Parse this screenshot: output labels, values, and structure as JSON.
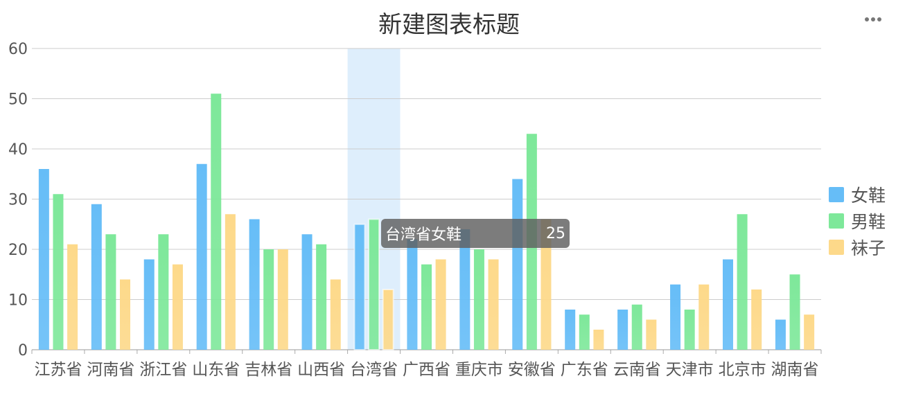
{
  "header": {
    "title": "新建图表标题",
    "more_icon": "more-horizontal-icon"
  },
  "colors": {
    "女鞋": "#66bdf7",
    "男鞋": "#7ee89a",
    "袜子": "#fdd98a",
    "highlight": "#deeefc",
    "grid": "#cccccc"
  },
  "chart_data": {
    "type": "bar",
    "title": "新建图表标题",
    "xlabel": "",
    "ylabel": "",
    "ylim": [
      0,
      60
    ],
    "yticks": [
      0,
      10,
      20,
      30,
      40,
      50,
      60
    ],
    "grid": true,
    "legend_position": "right",
    "categories": [
      "江苏省",
      "河南省",
      "浙江省",
      "山东省",
      "吉林省",
      "山西省",
      "台湾省",
      "广西省",
      "重庆市",
      "安徽省",
      "广东省",
      "云南省",
      "天津市",
      "北京市",
      "湖南省"
    ],
    "series": [
      {
        "name": "女鞋",
        "values": [
          36,
          29,
          18,
          37,
          26,
          23,
          25,
          22,
          24,
          34,
          8,
          8,
          13,
          18,
          6
        ]
      },
      {
        "name": "男鞋",
        "values": [
          31,
          23,
          23,
          51,
          20,
          21,
          26,
          17,
          20,
          43,
          7,
          9,
          8,
          27,
          15
        ]
      },
      {
        "name": "袜子",
        "values": [
          21,
          14,
          17,
          27,
          20,
          14,
          12,
          18,
          18,
          26,
          4,
          6,
          13,
          12,
          7
        ]
      }
    ],
    "highlighted_category": "台湾省"
  },
  "tooltip": {
    "label": "台湾省女鞋",
    "value": "25"
  }
}
